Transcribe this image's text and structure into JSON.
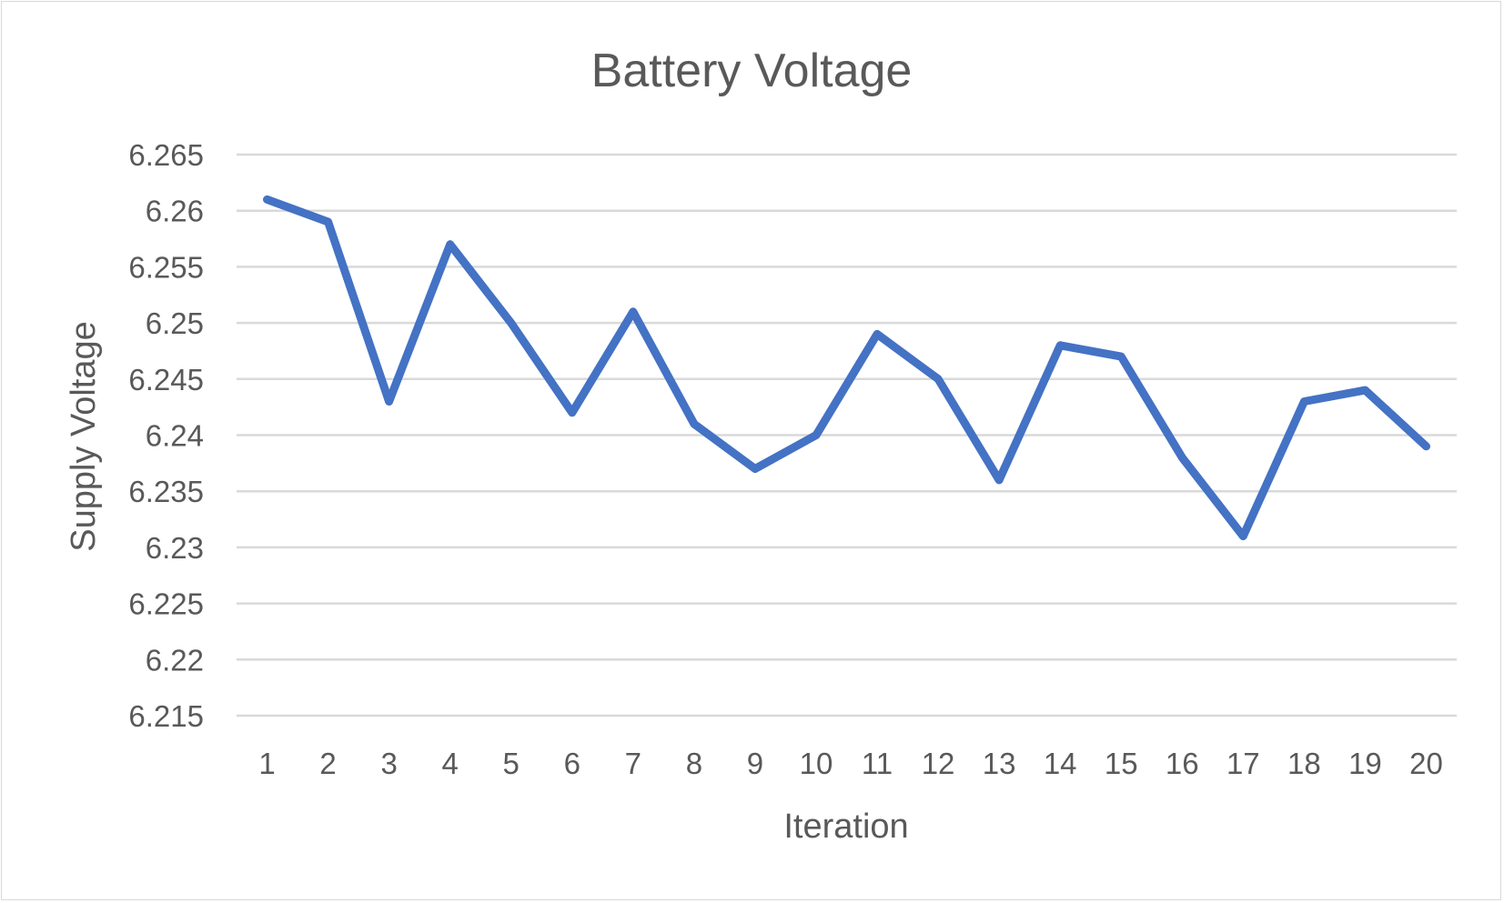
{
  "chart_data": {
    "type": "line",
    "title": "Battery Voltage",
    "xlabel": "Iteration",
    "ylabel": "Supply Voltage",
    "categories": [
      "1",
      "2",
      "3",
      "4",
      "5",
      "6",
      "7",
      "8",
      "9",
      "10",
      "11",
      "12",
      "13",
      "14",
      "15",
      "16",
      "17",
      "18",
      "19",
      "20"
    ],
    "series": [
      {
        "values": [
          6.261,
          6.259,
          6.243,
          6.257,
          6.25,
          6.242,
          6.251,
          6.241,
          6.237,
          6.24,
          6.249,
          6.245,
          6.236,
          6.248,
          6.247,
          6.238,
          6.231,
          6.243,
          6.244,
          6.239
        ],
        "color": "#4472c4"
      }
    ],
    "ylim": [
      6.215,
      6.265
    ],
    "yticks": [
      "6.215",
      "6.22",
      "6.225",
      "6.23",
      "6.235",
      "6.24",
      "6.245",
      "6.25",
      "6.255",
      "6.26",
      "6.265"
    ],
    "grid": true,
    "legend": "none"
  }
}
